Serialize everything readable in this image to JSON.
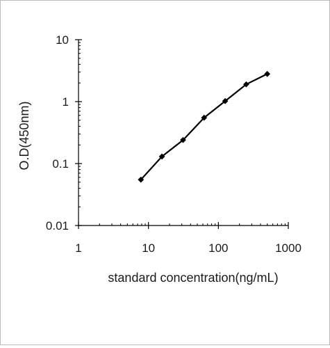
{
  "chart_data": {
    "type": "line",
    "title": "",
    "xlabel": "standard concentration(ng/mL)",
    "ylabel": "O.D(450nm)",
    "xscale": "log",
    "yscale": "log",
    "xlim": [
      1,
      1000
    ],
    "ylim": [
      0.01,
      10
    ],
    "x_ticks": [
      1,
      10,
      100,
      1000
    ],
    "x_tick_labels": [
      "1",
      "10",
      "100",
      "1000"
    ],
    "y_ticks": [
      0.01,
      0.1,
      1,
      10
    ],
    "y_tick_labels": [
      "0.01",
      "0.1",
      "1",
      "10"
    ],
    "grid": false,
    "legend": "none",
    "series": [
      {
        "x": [
          7.8,
          15.6,
          31.25,
          62.5,
          125,
          250,
          500
        ],
        "y": [
          0.055,
          0.13,
          0.24,
          0.55,
          1.02,
          1.9,
          2.8
        ],
        "color": "#000000",
        "marker": "diamond"
      }
    ]
  }
}
